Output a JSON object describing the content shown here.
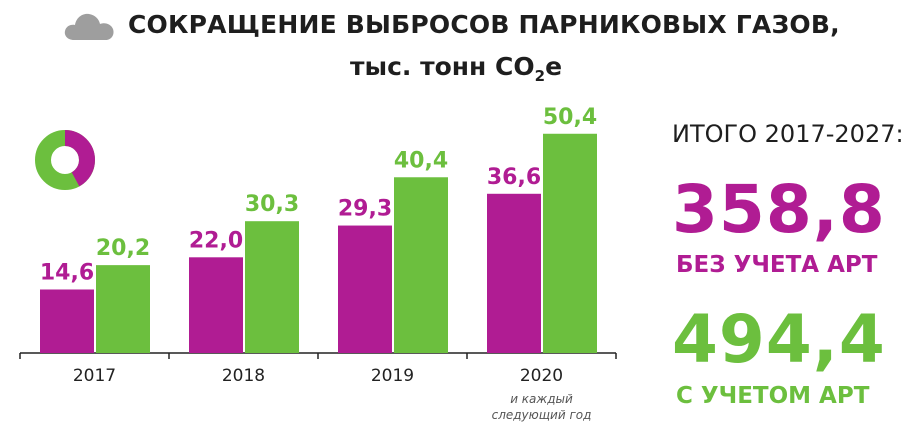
{
  "header": {
    "title": "СОКРАЩЕНИЕ ВЫБРОСОВ ПАРНИКОВЫХ ГАЗОВ,",
    "subtitle_main": "тыс. тонн CO",
    "subtitle_sub": "2",
    "subtitle_end": "e",
    "icon": "cloud-icon"
  },
  "legend_icon": {
    "name": "donut-icon",
    "share_purple": 0.42,
    "colors": [
      "#b01c93",
      "#6cbf3e"
    ]
  },
  "colors": {
    "purple": "#b01c93",
    "green": "#6cbf3e",
    "axis": "#222222"
  },
  "chart_data": {
    "type": "bar",
    "categories": [
      "2017",
      "2018",
      "2019",
      "2020"
    ],
    "series": [
      {
        "values": [
          14.6,
          22.0,
          29.3,
          36.6
        ],
        "labels": [
          "14,6",
          "22,0",
          "29,3",
          "36,6"
        ],
        "color": "#b01c93"
      },
      {
        "values": [
          20.2,
          30.3,
          40.4,
          50.4
        ],
        "labels": [
          "20,2",
          "30,3",
          "40,4",
          "50,4"
        ],
        "color": "#6cbf3e"
      }
    ],
    "annotation": [
      "и каждый",
      "следующий год"
    ],
    "ylim": [
      0,
      60
    ],
    "grid": false,
    "legend": "none"
  },
  "summary": {
    "total_label": "ИТОГО 2017-2027:",
    "without_value": "358,8",
    "without_label": "БЕЗ УЧЕТА АРТ",
    "with_value": "494,4",
    "with_label": "С УЧЕТОМ АРТ"
  }
}
